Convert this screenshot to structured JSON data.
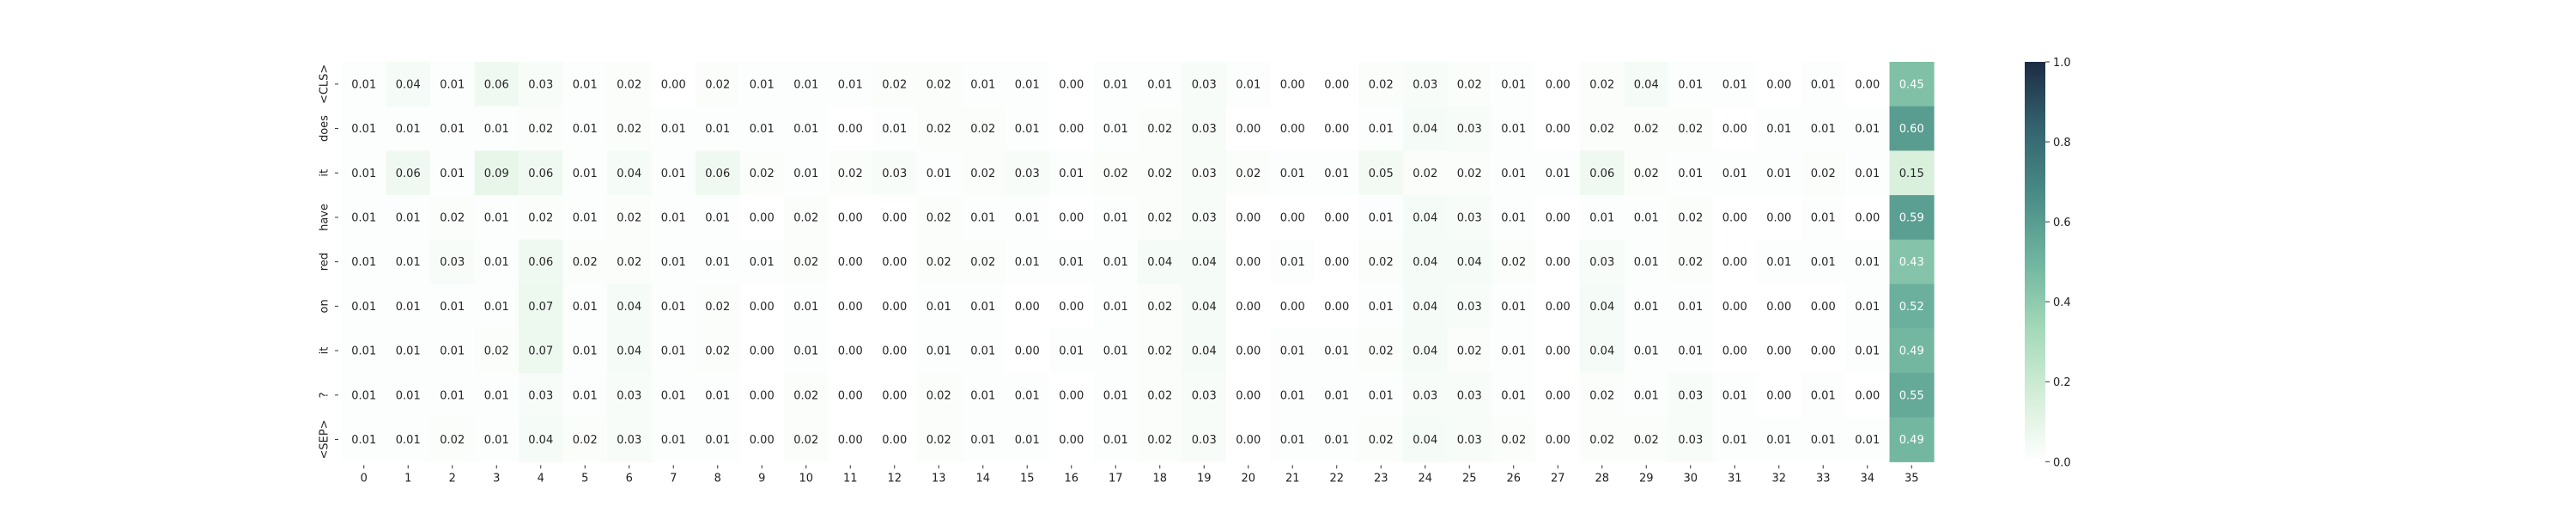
{
  "chart_data": {
    "type": "heatmap",
    "title": "",
    "xlabel": "",
    "ylabel": "",
    "x_labels": [
      "0",
      "1",
      "2",
      "3",
      "4",
      "5",
      "6",
      "7",
      "8",
      "9",
      "10",
      "11",
      "12",
      "13",
      "14",
      "15",
      "16",
      "17",
      "18",
      "19",
      "20",
      "21",
      "22",
      "23",
      "24",
      "25",
      "26",
      "27",
      "28",
      "29",
      "30",
      "31",
      "32",
      "33",
      "34",
      "35"
    ],
    "y_labels": [
      "<CLS>",
      "does",
      "it",
      "have",
      "red",
      "on",
      "it",
      "?",
      "<SEP>"
    ],
    "values": [
      [
        0.01,
        0.04,
        0.01,
        0.06,
        0.03,
        0.01,
        0.02,
        0.0,
        0.02,
        0.01,
        0.01,
        0.01,
        0.02,
        0.02,
        0.01,
        0.01,
        0.0,
        0.01,
        0.01,
        0.03,
        0.01,
        0.0,
        0.0,
        0.02,
        0.03,
        0.02,
        0.01,
        0.0,
        0.02,
        0.04,
        0.01,
        0.01,
        0.0,
        0.01,
        0.0,
        0.45
      ],
      [
        0.01,
        0.01,
        0.01,
        0.01,
        0.02,
        0.01,
        0.02,
        0.01,
        0.01,
        0.01,
        0.01,
        0.0,
        0.01,
        0.02,
        0.02,
        0.01,
        0.0,
        0.01,
        0.02,
        0.03,
        0.0,
        0.0,
        0.0,
        0.01,
        0.04,
        0.03,
        0.01,
        0.0,
        0.02,
        0.02,
        0.02,
        0.0,
        0.01,
        0.01,
        0.01,
        0.6
      ],
      [
        0.01,
        0.06,
        0.01,
        0.09,
        0.06,
        0.01,
        0.04,
        0.01,
        0.06,
        0.02,
        0.01,
        0.02,
        0.03,
        0.01,
        0.02,
        0.03,
        0.01,
        0.02,
        0.02,
        0.03,
        0.02,
        0.01,
        0.01,
        0.05,
        0.02,
        0.02,
        0.01,
        0.01,
        0.06,
        0.02,
        0.01,
        0.01,
        0.01,
        0.02,
        0.01,
        0.15
      ],
      [
        0.01,
        0.01,
        0.02,
        0.01,
        0.02,
        0.01,
        0.02,
        0.01,
        0.01,
        0.0,
        0.02,
        0.0,
        0.0,
        0.02,
        0.01,
        0.01,
        0.0,
        0.01,
        0.02,
        0.03,
        0.0,
        0.0,
        0.0,
        0.01,
        0.04,
        0.03,
        0.01,
        0.0,
        0.01,
        0.01,
        0.02,
        0.0,
        0.0,
        0.01,
        0.0,
        0.59
      ],
      [
        0.01,
        0.01,
        0.03,
        0.01,
        0.06,
        0.02,
        0.02,
        0.01,
        0.01,
        0.01,
        0.02,
        0.0,
        0.0,
        0.02,
        0.02,
        0.01,
        0.01,
        0.01,
        0.04,
        0.04,
        0.0,
        0.01,
        0.0,
        0.02,
        0.04,
        0.04,
        0.02,
        0.0,
        0.03,
        0.01,
        0.02,
        0.0,
        0.01,
        0.01,
        0.01,
        0.43
      ],
      [
        0.01,
        0.01,
        0.01,
        0.01,
        0.07,
        0.01,
        0.04,
        0.01,
        0.02,
        0.0,
        0.01,
        0.0,
        0.0,
        0.01,
        0.01,
        0.0,
        0.0,
        0.01,
        0.02,
        0.04,
        0.0,
        0.0,
        0.0,
        0.01,
        0.04,
        0.03,
        0.01,
        0.0,
        0.04,
        0.01,
        0.01,
        0.0,
        0.0,
        0.0,
        0.01,
        0.52
      ],
      [
        0.01,
        0.01,
        0.01,
        0.02,
        0.07,
        0.01,
        0.04,
        0.01,
        0.02,
        0.0,
        0.01,
        0.0,
        0.0,
        0.01,
        0.01,
        0.0,
        0.01,
        0.01,
        0.02,
        0.04,
        0.0,
        0.01,
        0.01,
        0.02,
        0.04,
        0.02,
        0.01,
        0.0,
        0.04,
        0.01,
        0.01,
        0.0,
        0.0,
        0.0,
        0.01,
        0.49
      ],
      [
        0.01,
        0.01,
        0.01,
        0.01,
        0.03,
        0.01,
        0.03,
        0.01,
        0.01,
        0.0,
        0.02,
        0.0,
        0.0,
        0.02,
        0.01,
        0.01,
        0.0,
        0.01,
        0.02,
        0.03,
        0.0,
        0.01,
        0.01,
        0.01,
        0.03,
        0.03,
        0.01,
        0.0,
        0.02,
        0.01,
        0.03,
        0.01,
        0.0,
        0.01,
        0.0,
        0.55
      ],
      [
        0.01,
        0.01,
        0.02,
        0.01,
        0.04,
        0.02,
        0.03,
        0.01,
        0.01,
        0.0,
        0.02,
        0.0,
        0.0,
        0.02,
        0.01,
        0.01,
        0.0,
        0.01,
        0.02,
        0.03,
        0.0,
        0.01,
        0.01,
        0.02,
        0.04,
        0.03,
        0.02,
        0.0,
        0.02,
        0.02,
        0.03,
        0.01,
        0.01,
        0.01,
        0.01,
        0.49
      ]
    ],
    "value_range": [
      0.0,
      1.0
    ],
    "colorbar": {
      "ticks": [
        "0.0",
        "0.2",
        "0.4",
        "0.6",
        "0.8",
        "1.0"
      ],
      "colormap": [
        "#ffffff",
        "#d4eed8",
        "#a3d8b8",
        "#70b5a0",
        "#4a8c86",
        "#34646f",
        "#1d2b44"
      ]
    },
    "grid": false,
    "annotations": true
  }
}
